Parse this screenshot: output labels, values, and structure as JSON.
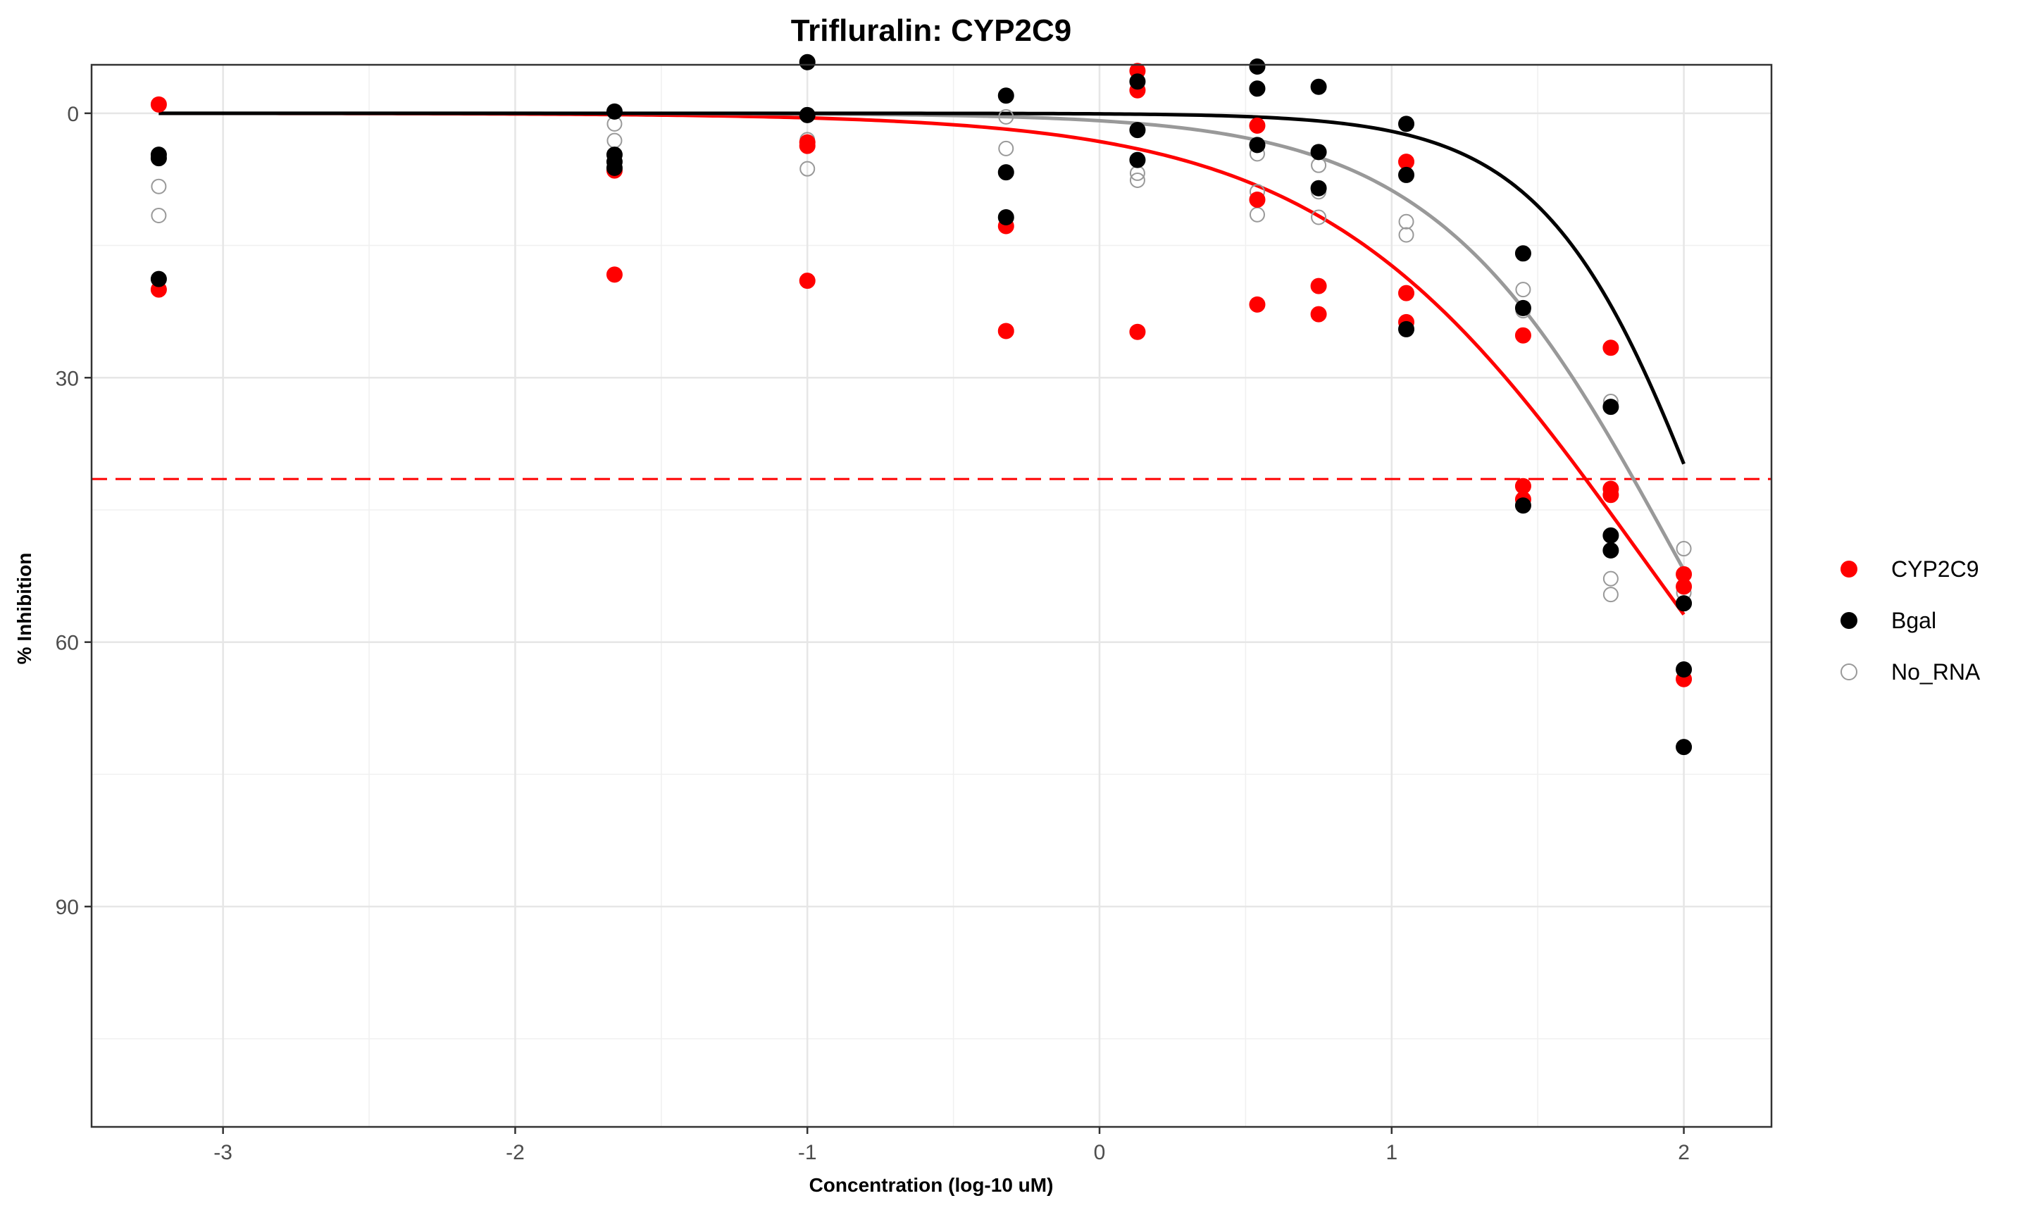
{
  "chart_data": {
    "type": "scatter",
    "title": "Trifluralin: CYP2C9",
    "xlabel": "Concentration (log-10 uM)",
    "ylabel": "% Inhibition",
    "xlim": [
      -3.45,
      2.3
    ],
    "ylim": [
      115,
      -5.5
    ],
    "y_reversed": true,
    "x_ticks": [
      -3,
      -2,
      -1,
      0,
      1,
      2
    ],
    "x_tick_labels": [
      "-3",
      "-2",
      "-1",
      "0",
      "1",
      "2"
    ],
    "y_ticks": [
      0,
      30,
      60,
      90
    ],
    "y_tick_labels": [
      "0",
      "30",
      "60",
      "90"
    ],
    "grid": true,
    "legend_position": "right",
    "reference_line": {
      "y": 41.5,
      "color": "#ff0000",
      "style": "dashed"
    },
    "series": [
      {
        "name": "CYP2C9",
        "color": "#ff0000",
        "marker": "filled",
        "points": [
          [
            -3.22,
            -1.0
          ],
          [
            -3.22,
            20.0
          ],
          [
            -1.66,
            6.5
          ],
          [
            -1.66,
            18.3
          ],
          [
            -1.0,
            3.3
          ],
          [
            -1.0,
            3.7
          ],
          [
            -1.0,
            19.0
          ],
          [
            -0.32,
            12.8
          ],
          [
            -0.32,
            24.7
          ],
          [
            0.13,
            -4.8
          ],
          [
            0.13,
            -2.6
          ],
          [
            0.13,
            24.8
          ],
          [
            0.54,
            1.4
          ],
          [
            0.54,
            9.8
          ],
          [
            0.54,
            21.7
          ],
          [
            0.75,
            19.6
          ],
          [
            0.75,
            22.8
          ],
          [
            1.05,
            5.5
          ],
          [
            1.05,
            20.4
          ],
          [
            1.05,
            23.7
          ],
          [
            1.45,
            25.2
          ],
          [
            1.45,
            42.3
          ],
          [
            1.45,
            43.8
          ],
          [
            1.75,
            26.6
          ],
          [
            1.75,
            42.6
          ],
          [
            1.75,
            43.3
          ],
          [
            2.0,
            52.3
          ],
          [
            2.0,
            53.7
          ],
          [
            2.0,
            64.2
          ]
        ],
        "curve": {
          "top": 0,
          "bottom": 100,
          "logIC50": 1.85,
          "hill": 0.8
        }
      },
      {
        "name": "Bgal",
        "color": "#000000",
        "marker": "filled",
        "points": [
          [
            -3.22,
            4.7
          ],
          [
            -3.22,
            5.1
          ],
          [
            -3.22,
            18.8
          ],
          [
            -1.66,
            -0.2
          ],
          [
            -1.66,
            4.7
          ],
          [
            -1.66,
            5.5
          ],
          [
            -1.66,
            6.2
          ],
          [
            -1.0,
            -5.8
          ],
          [
            -1.0,
            0.2
          ],
          [
            -0.32,
            -2.0
          ],
          [
            -0.32,
            6.7
          ],
          [
            -0.32,
            11.8
          ],
          [
            0.13,
            -3.6
          ],
          [
            0.13,
            1.9
          ],
          [
            0.13,
            5.3
          ],
          [
            0.54,
            -5.3
          ],
          [
            0.54,
            -2.8
          ],
          [
            0.54,
            3.6
          ],
          [
            0.75,
            -3.0
          ],
          [
            0.75,
            4.4
          ],
          [
            0.75,
            8.5
          ],
          [
            1.05,
            1.2
          ],
          [
            1.05,
            7.0
          ],
          [
            1.05,
            24.5
          ],
          [
            1.45,
            15.9
          ],
          [
            1.45,
            22.1
          ],
          [
            1.45,
            44.5
          ],
          [
            1.75,
            33.3
          ],
          [
            1.75,
            47.9
          ],
          [
            1.75,
            49.6
          ],
          [
            2.0,
            55.6
          ],
          [
            2.0,
            63.1
          ],
          [
            2.0,
            71.9
          ]
        ],
        "curve": {
          "top": 0,
          "bottom": 100,
          "logIC50": 2.12,
          "hill": 1.5
        }
      },
      {
        "name": "No_RNA",
        "color": "#999999",
        "marker": "open",
        "points": [
          [
            -3.22,
            8.3
          ],
          [
            -3.22,
            11.6
          ],
          [
            -1.66,
            1.2
          ],
          [
            -1.66,
            3.1
          ],
          [
            -1.0,
            3.0
          ],
          [
            -1.0,
            6.3
          ],
          [
            -0.32,
            0.4
          ],
          [
            -0.32,
            4.0
          ],
          [
            0.13,
            6.8
          ],
          [
            0.13,
            7.6
          ],
          [
            0.54,
            4.6
          ],
          [
            0.54,
            8.9
          ],
          [
            0.54,
            11.5
          ],
          [
            0.75,
            5.9
          ],
          [
            0.75,
            8.9
          ],
          [
            0.75,
            11.8
          ],
          [
            1.05,
            12.3
          ],
          [
            1.05,
            13.8
          ],
          [
            1.45,
            20.0
          ],
          [
            1.45,
            22.4
          ],
          [
            1.75,
            32.7
          ],
          [
            1.75,
            52.8
          ],
          [
            1.75,
            54.6
          ],
          [
            2.0,
            49.4
          ],
          [
            2.0,
            54.4
          ]
        ],
        "curve": {
          "top": 0,
          "bottom": 100,
          "logIC50": 1.97,
          "hill": 1.05
        }
      }
    ]
  }
}
